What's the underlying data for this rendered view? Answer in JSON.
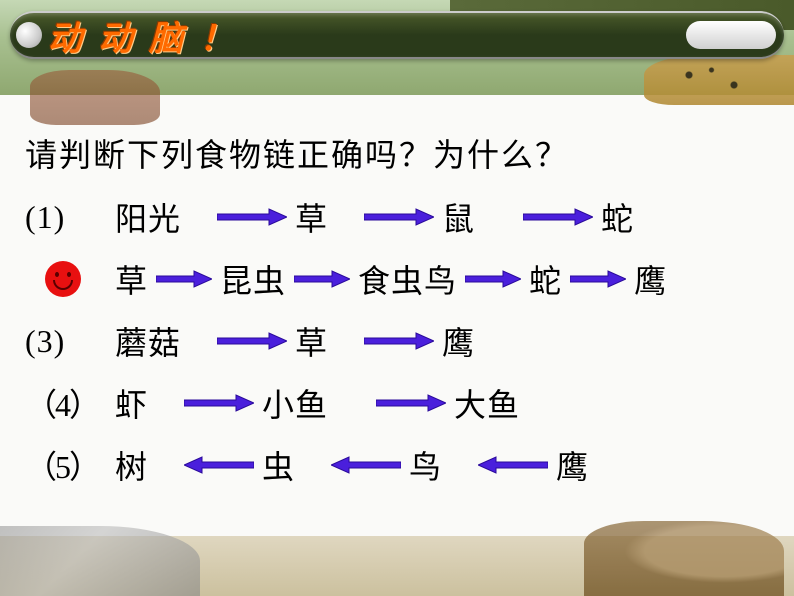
{
  "title": "动 动 脑 ！",
  "question": "请判断下列食物链正确吗？为什么？",
  "arrow_color": "#4a1fdc",
  "arrow_outline": "#2a0a9a",
  "arrow_width": 70,
  "arrow_width_short": 56,
  "chains": [
    {
      "num": "(1)",
      "items": [
        "阳光",
        "草",
        "鼠",
        "蛇"
      ],
      "dir": "right",
      "spacers": [
        "sp-md",
        "sp-md",
        "sp-lg"
      ]
    },
    {
      "num": "smiley",
      "items": [
        "草",
        "昆虫",
        "食虫鸟",
        "蛇",
        "鹰"
      ],
      "dir": "right",
      "short": true
    },
    {
      "num": "(3)",
      "items": [
        "蘑菇",
        "草",
        "鹰"
      ],
      "dir": "right",
      "spacers": [
        "sp-md",
        "sp-md"
      ]
    },
    {
      "num": "（4）",
      "items": [
        "虾",
        "小鱼",
        "大鱼"
      ],
      "dir": "right",
      "spacers": [
        "sp-md",
        "sp-lg",
        "sp-sm"
      ],
      "wide": true
    },
    {
      "num": "（5）",
      "items": [
        "树",
        "虫",
        "鸟",
        "鹰"
      ],
      "dir": "left",
      "spacers": [
        "sp-md",
        "sp-md",
        "sp-md",
        "sp-md"
      ],
      "wide": true
    }
  ]
}
